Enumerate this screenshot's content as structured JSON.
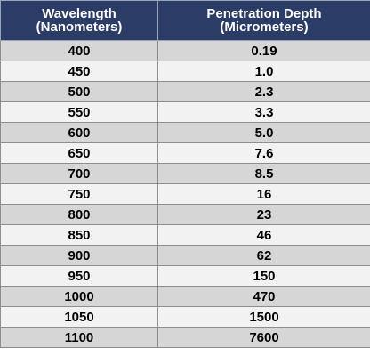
{
  "table": {
    "headers": [
      {
        "line1": "Wavelength",
        "line2": "(Nanometers)"
      },
      {
        "line1": "Penetration Depth",
        "line2": "(Micrometers)"
      }
    ],
    "rows": [
      {
        "wavelength": "400",
        "depth": "0.19"
      },
      {
        "wavelength": "450",
        "depth": "1.0"
      },
      {
        "wavelength": "500",
        "depth": "2.3"
      },
      {
        "wavelength": "550",
        "depth": "3.3"
      },
      {
        "wavelength": "600",
        "depth": "5.0"
      },
      {
        "wavelength": "650",
        "depth": "7.6"
      },
      {
        "wavelength": "700",
        "depth": "8.5"
      },
      {
        "wavelength": "750",
        "depth": "16"
      },
      {
        "wavelength": "800",
        "depth": "23"
      },
      {
        "wavelength": "850",
        "depth": "46"
      },
      {
        "wavelength": "900",
        "depth": "62"
      },
      {
        "wavelength": "950",
        "depth": "150"
      },
      {
        "wavelength": "1000",
        "depth": "470"
      },
      {
        "wavelength": "1050",
        "depth": "1500"
      },
      {
        "wavelength": "1100",
        "depth": "7600"
      }
    ]
  },
  "colors": {
    "header_bg": "#2b3d66",
    "header_text": "#ffffff",
    "row_odd": "#d6d6d6",
    "row_even": "#f2f2f2"
  }
}
